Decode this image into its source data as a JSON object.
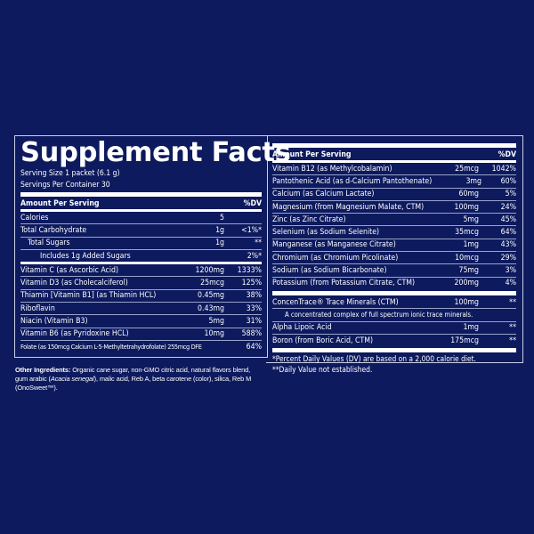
{
  "title": "Supplement Facts",
  "serving_size": "Serving Size 1 packet (6.1 g)",
  "servings_per_container": "Servings Per Container 30",
  "header": {
    "amount": "Amount Per Serving",
    "dv": "%DV"
  },
  "left_rows": [
    {
      "name": "Calories",
      "amount": "5",
      "dv": "",
      "indent": 0
    },
    {
      "name": "Total Carbohydrate",
      "amount": "1g",
      "dv": "<1%*",
      "indent": 0
    },
    {
      "name": "Total Sugars",
      "amount": "1g",
      "dv": "**",
      "indent": 1
    },
    {
      "name": "Includes 1g Added Sugars",
      "amount": "",
      "dv": "2%*",
      "indent": 2
    },
    {
      "name": "Vitamin C (as Ascorbic Acid)",
      "amount": "1200mg",
      "dv": "1333%",
      "indent": 0
    },
    {
      "name": "Vitamin D3 (as Cholecalciferol)",
      "amount": "25mcg",
      "dv": "125%",
      "indent": 0
    },
    {
      "name": "Thiamin [Vitamin B1] (as Thiamin HCL)",
      "amount": "0.45mg",
      "dv": "38%",
      "indent": 0
    },
    {
      "name": "Riboflavin",
      "amount": "0.43mg",
      "dv": "33%",
      "indent": 0
    },
    {
      "name": "Niacin (Vitamin B3)",
      "amount": "5mg",
      "dv": "31%",
      "indent": 0
    },
    {
      "name": "Vitamin B6 (as Pyridoxine HCL)",
      "amount": "10mg",
      "dv": "588%",
      "indent": 0
    },
    {
      "name": "Folate (as 150mcg Calcium L-5-Methyltetrahydrofolate) 255mcg DFE",
      "amount": "",
      "dv": "64%",
      "indent": 0,
      "tiny": true
    }
  ],
  "right_rows": [
    {
      "name": "Vitamin B12 (as Methylcobalamin)",
      "amount": "25mcg",
      "dv": "1042%"
    },
    {
      "name": "Pantothenic Acid (as d-Calcium Pantothenate)",
      "amount": "3mg",
      "dv": "60%"
    },
    {
      "name": "Calcium (as Calcium Lactate)",
      "amount": "60mg",
      "dv": "5%"
    },
    {
      "name": "Magnesium (from Magnesium Malate, CTM)",
      "amount": "100mg",
      "dv": "24%"
    },
    {
      "name": "Zinc (as Zinc Citrate)",
      "amount": "5mg",
      "dv": "45%"
    },
    {
      "name": "Selenium (as Sodium Selenite)",
      "amount": "35mcg",
      "dv": "64%"
    },
    {
      "name": "Manganese (as Manganese Citrate)",
      "amount": "1mg",
      "dv": "43%"
    },
    {
      "name": "Chromium (as Chromium Picolinate)",
      "amount": "10mcg",
      "dv": "29%"
    },
    {
      "name": "Sodium (as Sodium Bicarbonate)",
      "amount": "75mg",
      "dv": "3%"
    },
    {
      "name": "Potassium (from Potassium Citrate, CTM)",
      "amount": "200mg",
      "dv": "4%"
    }
  ],
  "right_rows2": [
    {
      "name": "ConcenTrace® Trace Minerals (CTM)",
      "amount": "100mg",
      "dv": "**",
      "sub": "A concentrated complex of full spectrum ionic trace minerals."
    },
    {
      "name": "Alpha Lipoic Acid",
      "amount": "1mg",
      "dv": "**"
    },
    {
      "name": "Boron (from Boric Acid, CTM)",
      "amount": "175mcg",
      "dv": "**"
    }
  ],
  "footnotes": [
    "*Percent Daily Values (DV) are based on a 2,000 calorie diet.",
    "**Daily Value not established."
  ],
  "ingredients": {
    "label": "Other Ingredients:",
    "text_1": " Organic cane sugar, non-GMO citric acid, natural flavors blend, gum arabic (",
    "italic": "Acacia senegal",
    "text_2": "), malic acid, Reb A, beta carotene (color), silica, Reb M (OnoSweet™)."
  },
  "colors": {
    "background": "#0d1a5e",
    "text": "#ffffff"
  }
}
